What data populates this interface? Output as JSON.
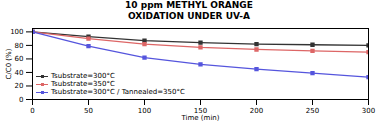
{
  "chart_data": {
    "type": "line",
    "title": "10 ppm METHYL ORANGE\nOXIDATION UNDER UV-A",
    "x": [
      0,
      50,
      100,
      150,
      200,
      250,
      300
    ],
    "series": [
      {
        "name": "Tsubstrate=300°C",
        "color": "#333333",
        "values": [
          100,
          93,
          87,
          84,
          82,
          81,
          80
        ]
      },
      {
        "name": "Tsubstrate=350°C",
        "color": "#dd6666",
        "values": [
          100,
          90,
          82,
          77,
          74,
          72,
          70
        ]
      },
      {
        "name": "Tsubstrate=300°C / Tannealed=350°C",
        "color": "#5555dd",
        "values": [
          100,
          79,
          62,
          52,
          45,
          39,
          33
        ]
      }
    ],
    "xlabel": "Time (min)",
    "ylabel": "C/C0 (%)",
    "xlim": [
      0,
      300
    ],
    "ylim": [
      0,
      105
    ],
    "xticks": [
      0,
      50,
      100,
      150,
      200,
      250,
      300
    ],
    "yticks": [
      0,
      20,
      40,
      60,
      80,
      100
    ],
    "marker": "square",
    "line_style": "solid",
    "legend": "lower left",
    "grid": false
  }
}
